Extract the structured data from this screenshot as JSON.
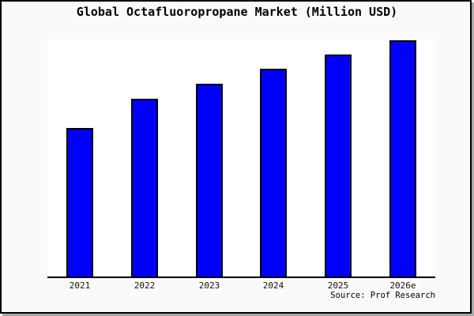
{
  "window": {
    "background": "#fafafa",
    "plot_background": "#ffffff",
    "border_color": "#000000",
    "shadow_color": "#a9a9a9"
  },
  "title": "Global Octafluoropropane Market (Million USD)",
  "source_note": "Source: Prof Research",
  "chart_data": {
    "type": "bar",
    "title": "Global Octafluoropropane Market (Million USD)",
    "categories": [
      "2021",
      "2022",
      "2023",
      "2024",
      "2025",
      "2026e"
    ],
    "values": [
      62.6,
      74.8,
      81.1,
      87.4,
      93.4,
      99.3
    ],
    "values_unit": "percent of plot height (y-axis values not shown in chart)",
    "xlabel": "",
    "ylabel": "",
    "ylim": [
      0,
      100
    ],
    "y_axis_visible": false,
    "grid": false,
    "legend": false,
    "bar_color": "#0000ff",
    "bar_border_color": "#000000",
    "source_note": "Source: Prof Research"
  }
}
